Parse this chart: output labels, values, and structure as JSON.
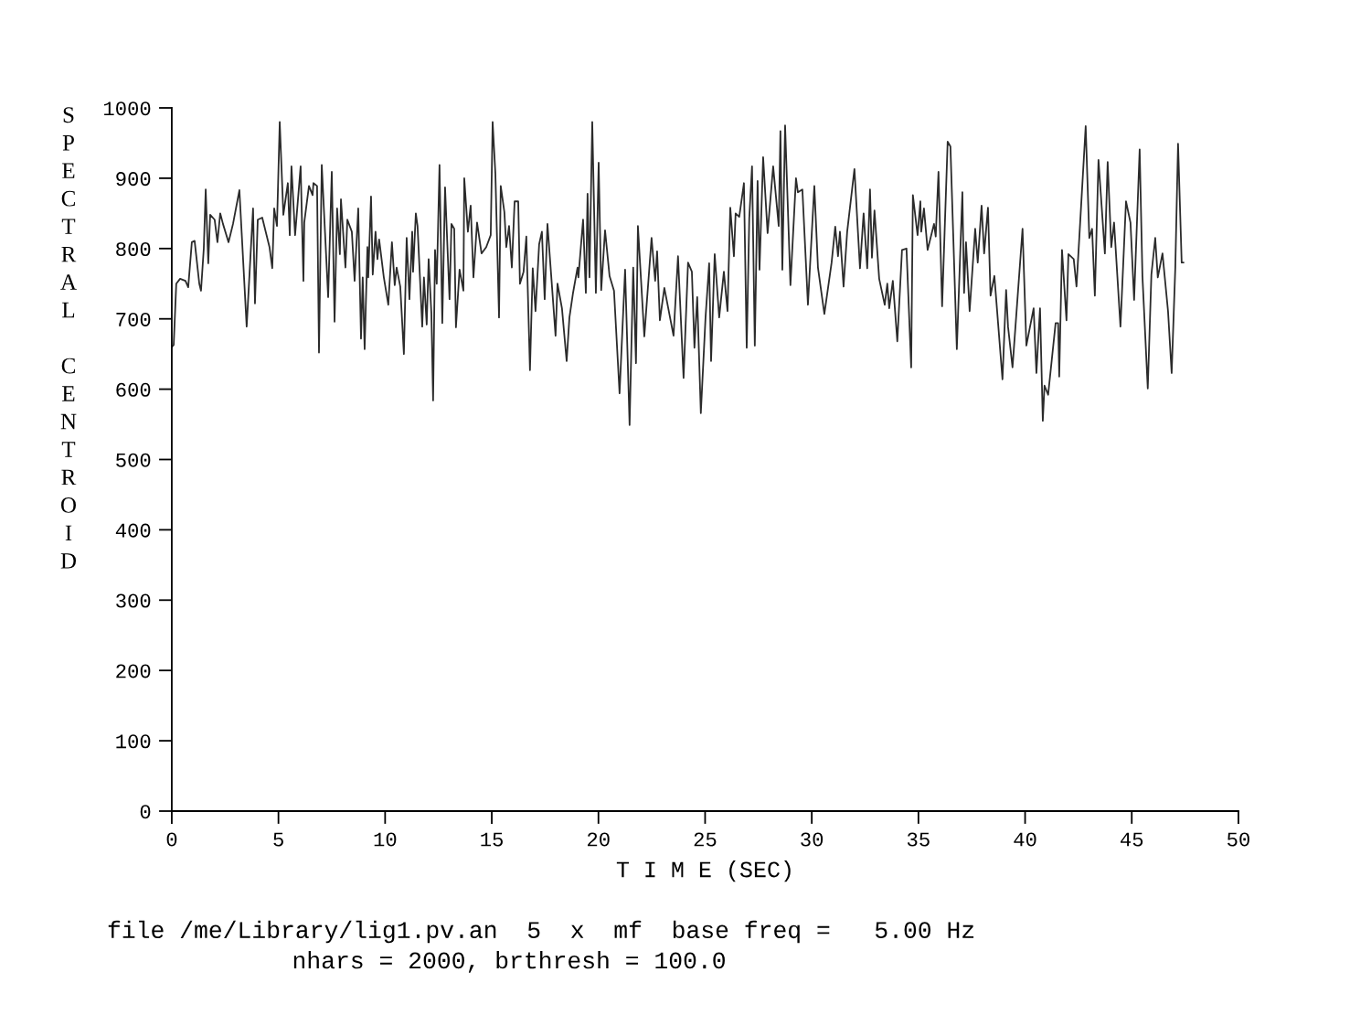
{
  "chart_data": {
    "type": "line",
    "xlabel": "T I M E (SEC)",
    "ylabel": "SPECTRAL CENTROID",
    "annotations": [
      "file /me/Library/lig1.pv.an  5  x  mf  base freq =   5.00 Hz",
      "nhars = 2000, brthresh = 100.0"
    ],
    "xlim": [
      0,
      50
    ],
    "xticks": [
      0,
      5,
      10,
      15,
      20,
      25,
      30,
      35,
      40,
      45,
      50
    ],
    "ylim": [
      0,
      1000
    ],
    "yticks": [
      0,
      100,
      200,
      300,
      400,
      500,
      600,
      700,
      800,
      900,
      1000
    ],
    "grid": false,
    "marker": "none",
    "line_style": "solid",
    "series": [
      {
        "color": "#2b2b2b",
        "x": [
          0,
          0.09,
          0.21,
          0.39,
          0.64,
          0.77,
          0.94,
          1.07,
          1.29,
          1.37,
          1.5,
          1.59,
          1.71,
          1.8,
          2.01,
          2.14,
          2.27,
          2.4,
          2.66,
          2.87,
          3.17,
          3.51,
          3.81,
          3.9,
          4.03,
          4.24,
          4.58,
          4.71,
          4.8,
          4.93,
          5.06,
          5.23,
          5.44,
          5.53,
          5.61,
          5.78,
          6.04,
          6.17,
          6.21,
          6.43,
          6.6,
          6.64,
          6.81,
          6.9,
          7.03,
          7.33,
          7.5,
          7.63,
          7.75,
          7.88,
          7.93,
          8.14,
          8.23,
          8.44,
          8.57,
          8.74,
          8.87,
          8.95,
          9.04,
          9.17,
          9.21,
          9.34,
          9.42,
          9.55,
          9.64,
          9.72,
          9.94,
          10.15,
          10.32,
          10.45,
          10.54,
          10.71,
          10.88,
          11.01,
          11.14,
          11.27,
          11.31,
          11.44,
          11.52,
          11.74,
          11.82,
          11.95,
          12.04,
          12.17,
          12.25,
          12.34,
          12.42,
          12.55,
          12.68,
          12.81,
          13.02,
          13.11,
          13.24,
          13.32,
          13.49,
          13.67,
          13.71,
          13.88,
          14.01,
          14.14,
          14.31,
          14.52,
          14.74,
          14.95,
          15.04,
          15.17,
          15.34,
          15.42,
          15.59,
          15.68,
          15.81,
          15.94,
          16.07,
          16.24,
          16.32,
          16.49,
          16.62,
          16.79,
          16.92,
          17.05,
          17.22,
          17.35,
          17.48,
          17.61,
          17.99,
          18.08,
          18.29,
          18.51,
          18.64,
          18.81,
          19.02,
          19.06,
          19.28,
          19.41,
          19.49,
          19.58,
          19.71,
          19.88,
          20.01,
          20.13,
          20.31,
          20.52,
          20.73,
          20.99,
          21.25,
          21.46,
          21.63,
          21.76,
          21.85,
          22.15,
          22.49,
          22.66,
          22.75,
          22.88,
          23.09,
          23.52,
          23.73,
          23.99,
          24.2,
          24.38,
          24.5,
          24.63,
          24.8,
          25.02,
          25.19,
          25.28,
          25.45,
          25.66,
          25.88,
          26.05,
          26.18,
          26.35,
          26.43,
          26.6,
          26.82,
          26.95,
          27.07,
          27.2,
          27.33,
          27.46,
          27.55,
          27.72,
          27.93,
          28.19,
          28.45,
          28.53,
          28.62,
          28.75,
          29.0,
          29.26,
          29.35,
          29.56,
          29.82,
          30.12,
          30.29,
          30.59,
          30.93,
          31.1,
          31.23,
          31.32,
          31.49,
          31.66,
          32.0,
          32.26,
          32.43,
          32.6,
          32.73,
          32.82,
          32.94,
          33.16,
          33.42,
          33.54,
          33.63,
          33.8,
          34.01,
          34.23,
          34.44,
          34.66,
          34.74,
          34.96,
          35.09,
          35.13,
          35.26,
          35.43,
          35.73,
          35.81,
          35.94,
          36.11,
          36.37,
          36.5,
          36.8,
          37.06,
          37.14,
          37.23,
          37.4,
          37.66,
          37.78,
          37.96,
          38.08,
          38.26,
          38.38,
          38.56,
          38.94,
          39.11,
          39.2,
          39.41,
          39.88,
          40.06,
          40.4,
          40.53,
          40.7,
          40.83,
          40.91,
          41.08,
          41.43,
          41.55,
          41.6,
          41.73,
          41.94,
          42.03,
          42.28,
          42.41,
          42.84,
          43.01,
          43.14,
          43.27,
          43.44,
          43.74,
          43.87,
          44.04,
          44.17,
          44.47,
          44.73,
          44.94,
          45.11,
          45.37,
          45.5,
          45.75,
          45.92,
          46.1,
          46.22,
          46.44,
          46.7,
          46.87,
          47.04,
          47.17,
          47.34,
          47.42
        ],
        "values": [
          660,
          663,
          750,
          757,
          754,
          745,
          809,
          811,
          750,
          740,
          800,
          884,
          779,
          848,
          841,
          809,
          850,
          835,
          809,
          835,
          883,
          689,
          857,
          722,
          841,
          844,
          802,
          772,
          857,
          832,
          980,
          848,
          893,
          819,
          917,
          819,
          917,
          754,
          837,
          889,
          876,
          893,
          889,
          652,
          919,
          731,
          909,
          696,
          857,
          792,
          870,
          773,
          841,
          824,
          754,
          857,
          672,
          759,
          657,
          802,
          759,
          874,
          763,
          824,
          785,
          813,
          759,
          720,
          809,
          748,
          773,
          746,
          650,
          815,
          728,
          824,
          767,
          850,
          832,
          689,
          759,
          692,
          785,
          707,
          584,
          798,
          750,
          919,
          694,
          887,
          728,
          835,
          828,
          688,
          770,
          740,
          900,
          824,
          861,
          759,
          837,
          793,
          802,
          819,
          980,
          906,
          702,
          889,
          852,
          802,
          832,
          773,
          867,
          867,
          750,
          767,
          817,
          627,
          772,
          711,
          806,
          824,
          728,
          835,
          676,
          750,
          715,
          640,
          702,
          737,
          773,
          759,
          841,
          737,
          878,
          759,
          980,
          737,
          922,
          741,
          826,
          761,
          740,
          594,
          770,
          549,
          773,
          637,
          832,
          675,
          815,
          754,
          796,
          698,
          744,
          676,
          789,
          616,
          780,
          767,
          659,
          731,
          566,
          702,
          779,
          640,
          792,
          702,
          767,
          711,
          858,
          789,
          850,
          845,
          893,
          659,
          843,
          917,
          662,
          896,
          770,
          930,
          822,
          917,
          832,
          967,
          770,
          975,
          748,
          900,
          880,
          884,
          720,
          889,
          773,
          707,
          780,
          831,
          789,
          824,
          746,
          824,
          913,
          772,
          850,
          772,
          884,
          787,
          854,
          757,
          720,
          750,
          715,
          754,
          668,
          798,
          800,
          631,
          876,
          819,
          867,
          824,
          857,
          798,
          835,
          817,
          909,
          718,
          952,
          945,
          657,
          880,
          737,
          809,
          711,
          828,
          780,
          861,
          793,
          858,
          733,
          761,
          614,
          741,
          689,
          631,
          828,
          662,
          715,
          623,
          715,
          555,
          605,
          592,
          694,
          694,
          618,
          798,
          698,
          792,
          785,
          746,
          974,
          815,
          828,
          733,
          926,
          793,
          923,
          802,
          837,
          689,
          867,
          837,
          727,
          941,
          761,
          601,
          763,
          815,
          759,
          793,
          711,
          623,
          772,
          949,
          780,
          780
        ]
      }
    ]
  }
}
